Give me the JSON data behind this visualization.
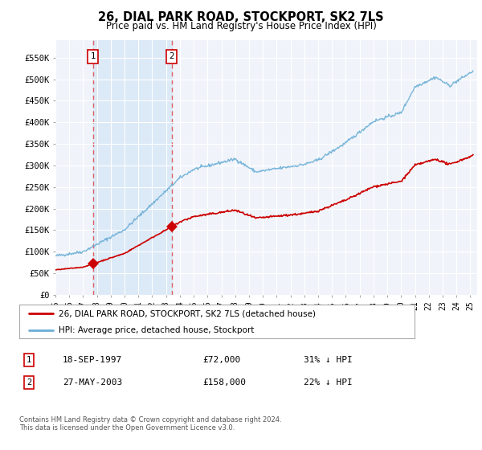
{
  "title": "26, DIAL PARK ROAD, STOCKPORT, SK2 7LS",
  "subtitle": "Price paid vs. HM Land Registry's House Price Index (HPI)",
  "ylabel_ticks": [
    "£0",
    "£50K",
    "£100K",
    "£150K",
    "£200K",
    "£250K",
    "£300K",
    "£350K",
    "£400K",
    "£450K",
    "£500K",
    "£550K"
  ],
  "ylim": [
    0,
    590000
  ],
  "ytick_vals": [
    0,
    50000,
    100000,
    150000,
    200000,
    250000,
    300000,
    350000,
    400000,
    450000,
    500000,
    550000
  ],
  "sale1_date": 1997.72,
  "sale1_price": 72000,
  "sale1_label": "1",
  "sale2_date": 2003.4,
  "sale2_price": 158000,
  "sale2_label": "2",
  "legend_line1": "26, DIAL PARK ROAD, STOCKPORT, SK2 7LS (detached house)",
  "legend_line2": "HPI: Average price, detached house, Stockport",
  "table_row1": [
    "1",
    "18-SEP-1997",
    "£72,000",
    "31% ↓ HPI"
  ],
  "table_row2": [
    "2",
    "27-MAY-2003",
    "£158,000",
    "22% ↓ HPI"
  ],
  "footnote": "Contains HM Land Registry data © Crown copyright and database right 2024.\nThis data is licensed under the Open Government Licence v3.0.",
  "bg_color": "#f0f4fa",
  "hpi_color": "#6baed6",
  "price_color": "#cc0000",
  "shade_color": "#dce9f7",
  "grid_color": "#ffffff",
  "label_box_color": "#cc0000"
}
